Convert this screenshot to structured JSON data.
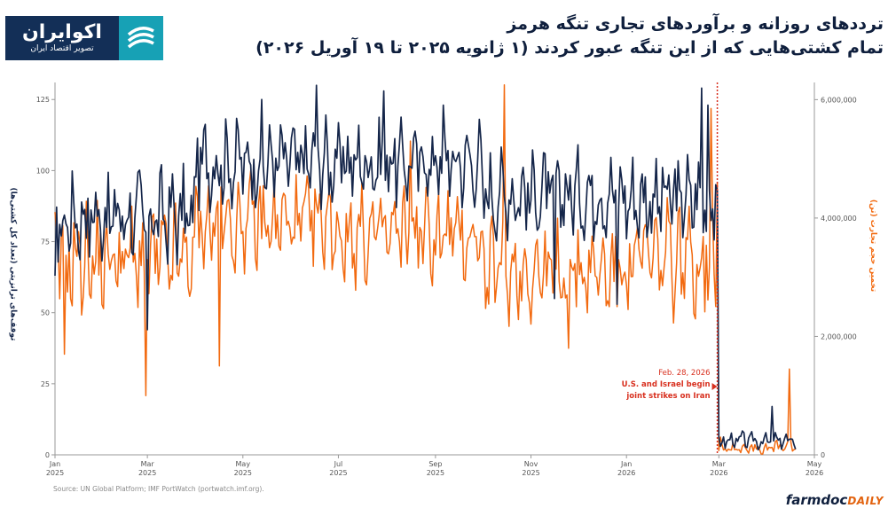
{
  "logo": {
    "name": "اکوایران",
    "tagline": "تصویر اقتصاد ایران"
  },
  "title": "ترددهای روزانه و برآوردهای تجاری تنگه هرمز",
  "subtitle": "تمام کشتی‌هایی که از این تنگه عبور کردند (۱ ژانویه ۲۰۲۵ تا ۱۹ آوریل ۲۰۲۶)",
  "source": "Source: UN Global Platform; IMF PortWatch (portwatch.imf.org).",
  "brand": {
    "name": "farmdoc",
    "suffix": "DAILY"
  },
  "colors": {
    "transits": "#15264a",
    "capacity": "#f26a10",
    "annotation": "#d8301f"
  },
  "chart_data": {
    "type": "line",
    "x_axis": {
      "start": "2025-01-01",
      "end": "2026-05-01",
      "ticks": [
        {
          "date": "2025-01-01",
          "label": "Jan",
          "year": "2025"
        },
        {
          "date": "2025-03-01",
          "label": "Mar",
          "year": "2025"
        },
        {
          "date": "2025-05-01",
          "label": "May",
          "year": "2025"
        },
        {
          "date": "2025-07-01",
          "label": "Jul",
          "year": "2025"
        },
        {
          "date": "2025-09-01",
          "label": "Sep",
          "year": "2025"
        },
        {
          "date": "2025-11-01",
          "label": "Nov",
          "year": "2025"
        },
        {
          "date": "2026-01-01",
          "label": "Jan",
          "year": "2026"
        },
        {
          "date": "2026-03-01",
          "label": "Mar",
          "year": "2026"
        },
        {
          "date": "2026-05-01",
          "label": "May",
          "year": "2026"
        }
      ]
    },
    "y_left": {
      "label": "توقف‌های ترانزیتی (تعداد کل کشتی‌ها)",
      "ylim": [
        0,
        131
      ],
      "ticks": [
        0,
        25,
        50,
        75,
        100,
        125
      ],
      "tick_labels": [
        "0",
        "25",
        "50",
        "75",
        "100",
        "125"
      ]
    },
    "y_right": {
      "label": "تخمین حجم تجارت (تن)",
      "ylim": [
        0,
        6290000
      ],
      "ticks": [
        0,
        2000000,
        4000000,
        6000000
      ],
      "tick_labels": [
        "0",
        "2,000,000",
        "4,000,000",
        "6,000,000"
      ]
    },
    "annotation": {
      "date": "2026-02-28",
      "lines": [
        "Feb. 28, 2026",
        "U.S. and Israel begin",
        "joint strikes on Iran"
      ]
    },
    "series": [
      {
        "name": "transits",
        "axis": "left",
        "segments": [
          {
            "from": "2025-01-01",
            "to": "2025-03-31",
            "level": 84,
            "amp": 16
          },
          {
            "from": "2025-04-01",
            "to": "2025-06-30",
            "level": 103,
            "amp": 15
          },
          {
            "from": "2025-07-01",
            "to": "2025-09-30",
            "level": 103,
            "amp": 15
          },
          {
            "from": "2025-10-01",
            "to": "2025-12-31",
            "level": 92,
            "amp": 15
          },
          {
            "from": "2026-01-01",
            "to": "2026-02-28",
            "level": 90,
            "amp": 16
          },
          {
            "from": "2026-03-01",
            "to": "2026-04-19",
            "level": 5,
            "amp": 3
          }
        ],
        "points": [
          [
            "2025-01-01",
            63
          ],
          [
            "2025-01-05",
            77
          ],
          [
            "2025-01-09",
            80
          ],
          [
            "2025-03-01",
            44
          ],
          [
            "2025-03-06",
            82
          ],
          [
            "2025-05-13",
            125
          ],
          [
            "2025-06-17",
            130
          ],
          [
            "2025-07-30",
            128
          ],
          [
            "2025-09-06",
            123
          ],
          [
            "2025-11-16",
            55
          ],
          [
            "2025-12-26",
            53
          ],
          [
            "2026-02-18",
            129
          ],
          [
            "2026-02-22",
            123
          ],
          [
            "2026-02-28",
            93
          ],
          [
            "2026-03-02",
            3
          ],
          [
            "2026-04-04",
            17
          ],
          [
            "2026-04-14",
            5
          ],
          [
            "2026-04-19",
            2
          ]
        ]
      },
      {
        "name": "capacity",
        "axis": "right",
        "segments": [
          {
            "from": "2025-01-01",
            "to": "2025-03-31",
            "level": 3300000,
            "amp": 900000
          },
          {
            "from": "2025-04-01",
            "to": "2025-06-30",
            "level": 3900000,
            "amp": 800000
          },
          {
            "from": "2025-07-01",
            "to": "2025-09-30",
            "level": 3700000,
            "amp": 800000
          },
          {
            "from": "2025-10-01",
            "to": "2025-12-31",
            "level": 3100000,
            "amp": 800000
          },
          {
            "from": "2026-01-01",
            "to": "2026-02-28",
            "level": 3300000,
            "amp": 900000
          },
          {
            "from": "2026-03-01",
            "to": "2026-04-19",
            "level": 120000,
            "amp": 120000
          }
        ],
        "points": [
          [
            "2025-01-07",
            1700000
          ],
          [
            "2025-02-28",
            1000000
          ],
          [
            "2025-04-16",
            1500000
          ],
          [
            "2025-08-16",
            5300000
          ],
          [
            "2025-10-15",
            6250000
          ],
          [
            "2025-11-25",
            1800000
          ],
          [
            "2026-02-24",
            5850000
          ],
          [
            "2026-02-28",
            4600000
          ],
          [
            "2026-03-02",
            300000
          ],
          [
            "2026-04-15",
            1450000
          ],
          [
            "2026-04-19",
            100000
          ]
        ]
      }
    ]
  }
}
